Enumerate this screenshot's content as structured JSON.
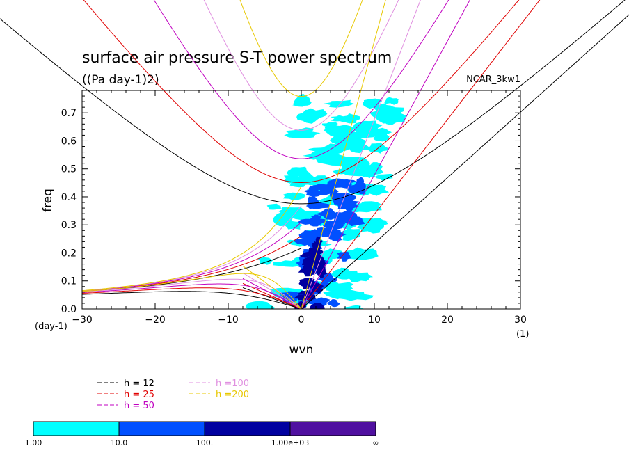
{
  "chart_data": {
    "type": "contour",
    "title": "surface air pressure S-T power spectrum",
    "subtitle": "((Pa day-1)2)",
    "source_label": "NCAR_3kw1",
    "xlabel": "wvn",
    "ylabel": "freq",
    "x_unit": "(1)",
    "y_unit": "(day-1)",
    "xlim": [
      -30,
      30
    ],
    "ylim": [
      0,
      0.78
    ],
    "xticks": [
      -30,
      -20,
      -10,
      0,
      10,
      20,
      30
    ],
    "yticks": [
      0.0,
      0.1,
      0.2,
      0.3,
      0.4,
      0.5,
      0.6,
      0.7
    ],
    "dispersion_curves": [
      {
        "label": "h = 12",
        "color": "#000000",
        "h": 12
      },
      {
        "label": "h = 25",
        "color": "#e00000",
        "h": 25
      },
      {
        "label": "h = 50",
        "color": "#c000c0",
        "h": 50
      },
      {
        "label": "h =100",
        "color": "#e090e0",
        "h": 100
      },
      {
        "label": "h =200",
        "color": "#e8c800",
        "h": 200
      }
    ],
    "colorbar": {
      "levels": [
        "1.00",
        "10.0",
        "100.",
        "1.00e+03",
        "∞"
      ],
      "colors": [
        "#00ffff",
        "#0050ff",
        "#0000a0",
        "#5010a0"
      ]
    }
  }
}
